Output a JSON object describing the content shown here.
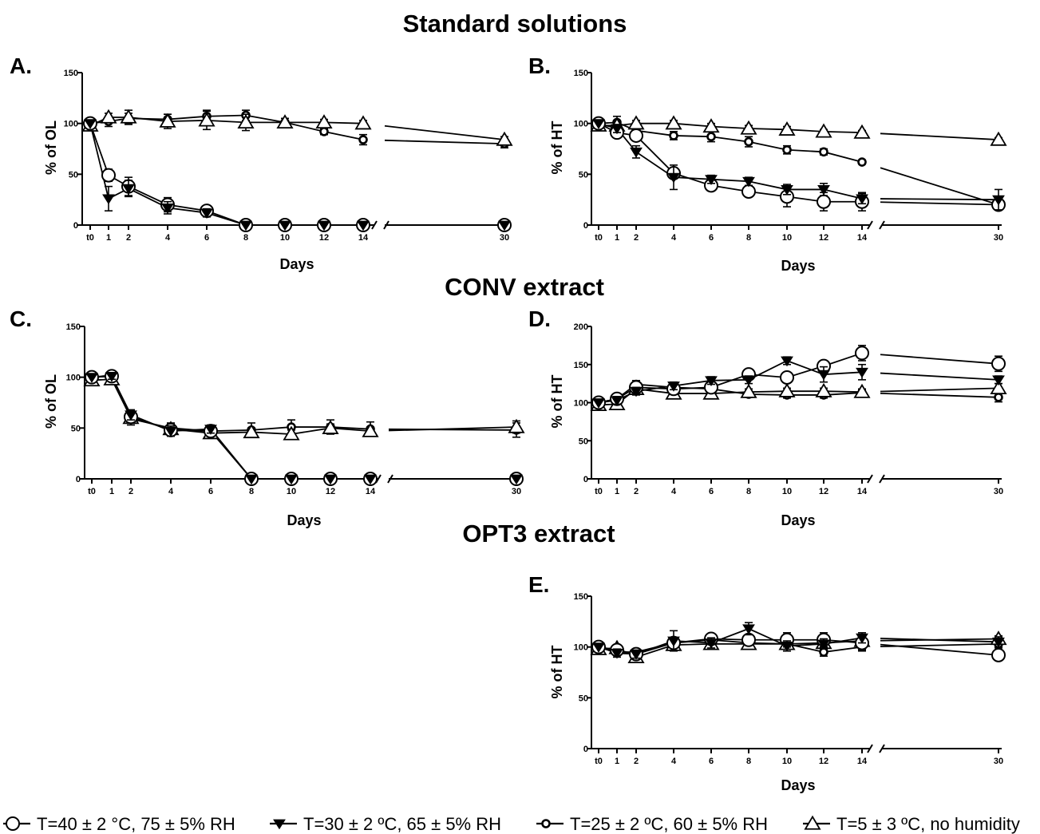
{
  "section_titles": {
    "standard": "Standard solutions",
    "conv": "CONV extract",
    "opt3": "OPT3 extract"
  },
  "legend": [
    {
      "key": "t40",
      "marker": "open-circle",
      "label": "T=40 ± 2 °C, 75 ± 5% RH"
    },
    {
      "key": "t30",
      "marker": "filled-down-triangle",
      "label": "T=30 ± 2 ºC, 65 ± 5% RH"
    },
    {
      "key": "t25",
      "marker": "small-open-circle",
      "label": "T=25 ± 2 ºC, 60 ± 5% RH"
    },
    {
      "key": "t5",
      "marker": "open-triangle",
      "label": "T=5 ± 3 ºC, no humidity"
    }
  ],
  "x_tick_labels": [
    "t0",
    "1",
    "2",
    "4",
    "6",
    "8",
    "10",
    "12",
    "14",
    "30"
  ],
  "chart_data": [
    {
      "type": "line",
      "letter": "A.",
      "xlabel": "Days",
      "ylabel": "% of OL",
      "ylim": [
        0,
        150
      ],
      "yticks": [
        0,
        50,
        100,
        150
      ],
      "x": [
        0,
        1,
        2,
        4,
        6,
        8,
        10,
        12,
        14,
        30
      ],
      "series": [
        {
          "key": "t40",
          "values": [
            100,
            49,
            38,
            20,
            14,
            0,
            0,
            0,
            0,
            0
          ],
          "errors": [
            0,
            6,
            9,
            7,
            4,
            0,
            0,
            0,
            0,
            0
          ]
        },
        {
          "key": "t30",
          "values": [
            100,
            26,
            36,
            17,
            12,
            0,
            0,
            0,
            0,
            0
          ],
          "errors": [
            0,
            12,
            8,
            6,
            4,
            0,
            0,
            0,
            0,
            0
          ]
        },
        {
          "key": "t25",
          "values": [
            100,
            102,
            105,
            104,
            107,
            108,
            101,
            92,
            84,
            80
          ],
          "errors": [
            0,
            5,
            5,
            5,
            6,
            5,
            4,
            3,
            5,
            4
          ]
        },
        {
          "key": "t5",
          "values": [
            98,
            106,
            106,
            102,
            103,
            101,
            101,
            101,
            100,
            84
          ],
          "errors": [
            0,
            4,
            7,
            7,
            9,
            8,
            4,
            3,
            3,
            3
          ]
        }
      ]
    },
    {
      "type": "line",
      "letter": "B.",
      "xlabel": "Days",
      "ylabel": "% of HT",
      "ylim": [
        0,
        150
      ],
      "yticks": [
        0,
        50,
        100,
        150
      ],
      "x": [
        0,
        1,
        2,
        4,
        6,
        8,
        10,
        12,
        14,
        30
      ],
      "series": [
        {
          "key": "t40",
          "values": [
            100,
            91,
            88,
            51,
            39,
            33,
            28,
            23,
            23,
            20
          ],
          "errors": [
            0,
            3,
            4,
            5,
            4,
            4,
            10,
            9,
            9,
            2
          ]
        },
        {
          "key": "t30",
          "values": [
            100,
            95,
            72,
            47,
            45,
            43,
            35,
            35,
            26,
            25
          ],
          "errors": [
            0,
            4,
            6,
            12,
            4,
            4,
            5,
            6,
            5,
            10
          ]
        },
        {
          "key": "t25",
          "values": [
            100,
            101,
            93,
            88,
            87,
            82,
            74,
            72,
            62,
            20
          ],
          "errors": [
            0,
            6,
            4,
            4,
            5,
            5,
            4,
            3,
            2,
            3
          ]
        },
        {
          "key": "t5",
          "values": [
            98,
            98,
            100,
            100,
            97,
            95,
            94,
            92,
            91,
            84
          ],
          "errors": [
            0,
            3,
            3,
            3,
            3,
            3,
            3,
            2,
            2,
            2
          ]
        }
      ]
    },
    {
      "type": "line",
      "letter": "C.",
      "xlabel": "Days",
      "ylabel": "% of OL",
      "ylim": [
        0,
        150
      ],
      "yticks": [
        0,
        50,
        100,
        150
      ],
      "x": [
        0,
        1,
        2,
        4,
        6,
        8,
        10,
        12,
        14,
        30
      ],
      "series": [
        {
          "key": "t40",
          "values": [
            100,
            101,
            61,
            48,
            47,
            0,
            0,
            0,
            0,
            0
          ],
          "errors": [
            0,
            4,
            6,
            6,
            5,
            0,
            0,
            0,
            0,
            0
          ]
        },
        {
          "key": "t30",
          "values": [
            100,
            101,
            63,
            47,
            49,
            0,
            0,
            0,
            0,
            0
          ],
          "errors": [
            0,
            3,
            5,
            5,
            4,
            0,
            0,
            0,
            0,
            0
          ]
        },
        {
          "key": "t25",
          "values": [
            100,
            102,
            59,
            50,
            47,
            48,
            51,
            51,
            49,
            48
          ],
          "errors": [
            0,
            3,
            6,
            5,
            5,
            7,
            7,
            7,
            7,
            7
          ]
        },
        {
          "key": "t5",
          "values": [
            97,
            98,
            60,
            49,
            45,
            46,
            44,
            50,
            47,
            51
          ],
          "errors": [
            0,
            3,
            4,
            4,
            4,
            4,
            4,
            4,
            4,
            6
          ]
        }
      ]
    },
    {
      "type": "line",
      "letter": "D.",
      "xlabel": "Days",
      "ylabel": "% of HT",
      "ylim": [
        0,
        200
      ],
      "yticks": [
        0,
        50,
        100,
        150,
        200
      ],
      "x": [
        0,
        1,
        2,
        4,
        6,
        8,
        10,
        12,
        14,
        30
      ],
      "series": [
        {
          "key": "t40",
          "values": [
            100,
            105,
            120,
            118,
            120,
            137,
            133,
            148,
            165,
            151
          ],
          "errors": [
            0,
            5,
            5,
            5,
            5,
            5,
            5,
            5,
            10,
            10
          ]
        },
        {
          "key": "t30",
          "values": [
            100,
            103,
            115,
            122,
            129,
            130,
            155,
            137,
            140,
            130
          ],
          "errors": [
            0,
            5,
            5,
            5,
            5,
            5,
            5,
            10,
            10,
            5
          ]
        },
        {
          "key": "t25",
          "values": [
            100,
            105,
            124,
            120,
            118,
            111,
            110,
            110,
            113,
            107
          ],
          "errors": [
            0,
            5,
            5,
            5,
            5,
            4,
            4,
            4,
            4,
            6
          ]
        },
        {
          "key": "t5",
          "values": [
            97,
            98,
            118,
            112,
            112,
            114,
            115,
            115,
            114,
            119
          ],
          "errors": [
            0,
            3,
            4,
            4,
            4,
            4,
            4,
            4,
            4,
            6
          ]
        }
      ]
    },
    {
      "type": "line",
      "letter": "E.",
      "xlabel": "Days",
      "ylabel": "% of HT",
      "ylim": [
        0,
        150
      ],
      "yticks": [
        0,
        50,
        100,
        150
      ],
      "x": [
        0,
        1,
        2,
        4,
        6,
        8,
        10,
        12,
        14,
        30
      ],
      "series": [
        {
          "key": "t40",
          "values": [
            100,
            97,
            93,
            104,
            108,
            107,
            107,
            107,
            104,
            92
          ],
          "errors": [
            0,
            4,
            4,
            5,
            5,
            5,
            7,
            7,
            7,
            5
          ]
        },
        {
          "key": "t30",
          "values": [
            100,
            94,
            93,
            106,
            104,
            118,
            101,
            103,
            109,
            105
          ],
          "errors": [
            0,
            4,
            4,
            10,
            5,
            6,
            5,
            5,
            5,
            5
          ]
        },
        {
          "key": "t25",
          "values": [
            100,
            95,
            95,
            104,
            107,
            104,
            103,
            95,
            100,
            103
          ],
          "errors": [
            0,
            3,
            3,
            4,
            4,
            4,
            4,
            4,
            4,
            4
          ]
        },
        {
          "key": "t5",
          "values": [
            98,
            99,
            90,
            102,
            103,
            103,
            103,
            104,
            106,
            108
          ],
          "errors": [
            0,
            3,
            3,
            3,
            3,
            3,
            3,
            3,
            3,
            3
          ]
        }
      ]
    }
  ]
}
